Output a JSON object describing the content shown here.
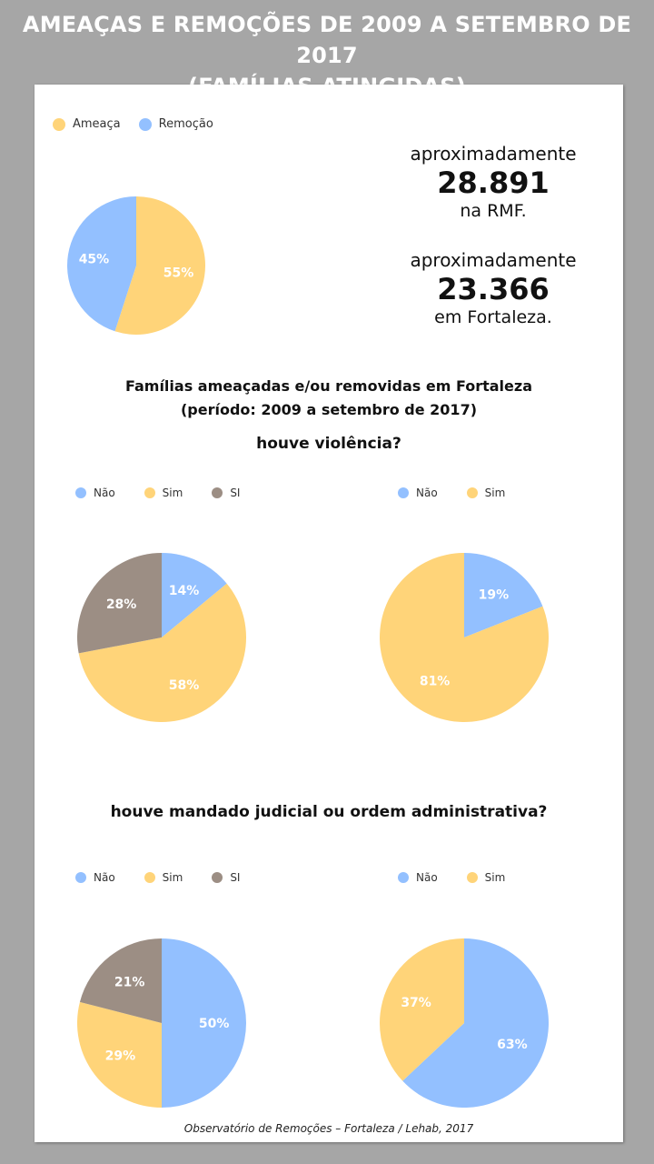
{
  "header": {
    "line1": "AMEAÇAS E REMOÇÕES DE 2009 A SETEMBRO DE 2017",
    "line2": "(FAMÍLIAS ATINGIDAS)"
  },
  "colors": {
    "ameaca": "#ffd479",
    "remocao": "#93c0ff",
    "nao": "#93c0ff",
    "sim": "#ffd479",
    "si": "#9c8e84"
  },
  "stats": [
    {
      "pre": "aproximadamente",
      "value": "28.891",
      "post": "na RMF."
    },
    {
      "pre": "aproximadamente",
      "value": "23.366",
      "post": "em Fortaleza."
    }
  ],
  "subtitle": {
    "line1": "Famílias ameaçadas e/ou removidas em Fortaleza",
    "line2": "(período: 2009 a setembro de 2017)"
  },
  "questions": {
    "violencia": "houve violência?",
    "mandado": "houve mandado judicial ou ordem administrativa?"
  },
  "footer": "Observatório de Remoções – Fortaleza / Lehab, 2017",
  "chart_data": [
    {
      "type": "pie",
      "legend": [
        "Ameaça",
        "Remoção"
      ],
      "slices": [
        {
          "name": "Ameaça",
          "value": 55,
          "label": "55%",
          "color": "#ffd479"
        },
        {
          "name": "Remoção",
          "value": 45,
          "label": "45%",
          "color": "#93c0ff"
        }
      ]
    },
    {
      "type": "pie",
      "legend": [
        "Não",
        "Sim",
        "SI"
      ],
      "slices": [
        {
          "name": "Não",
          "value": 14,
          "label": "14%",
          "color": "#93c0ff"
        },
        {
          "name": "Sim",
          "value": 58,
          "label": "58%",
          "color": "#ffd479"
        },
        {
          "name": "SI",
          "value": 28,
          "label": "28%",
          "color": "#9c8e84"
        }
      ]
    },
    {
      "type": "pie",
      "legend": [
        "Não",
        "Sim"
      ],
      "slices": [
        {
          "name": "Não",
          "value": 19,
          "label": "19%",
          "color": "#93c0ff"
        },
        {
          "name": "Sim",
          "value": 81,
          "label": "81%",
          "color": "#ffd479"
        }
      ]
    },
    {
      "type": "pie",
      "legend": [
        "Não",
        "Sim",
        "SI"
      ],
      "slices": [
        {
          "name": "Não",
          "value": 50,
          "label": "50%",
          "color": "#93c0ff"
        },
        {
          "name": "Sim",
          "value": 29,
          "label": "29%",
          "color": "#ffd479"
        },
        {
          "name": "SI",
          "value": 21,
          "label": "21%",
          "color": "#9c8e84"
        }
      ]
    },
    {
      "type": "pie",
      "legend": [
        "Não",
        "Sim"
      ],
      "slices": [
        {
          "name": "Não",
          "value": 63,
          "label": "63%",
          "color": "#93c0ff"
        },
        {
          "name": "Sim",
          "value": 37,
          "label": "37%",
          "color": "#ffd479"
        }
      ]
    }
  ]
}
